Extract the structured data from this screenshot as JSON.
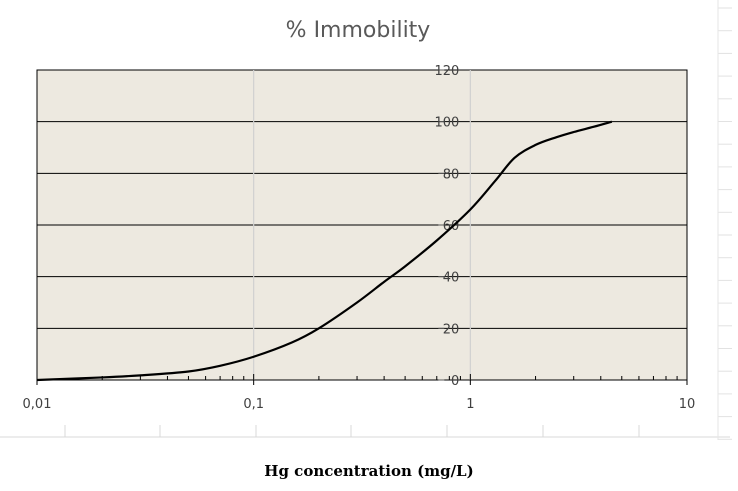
{
  "chart_data": {
    "type": "line",
    "title": "% Immobility",
    "xlabel": "Hg concentration (mg/L)",
    "ylabel": "",
    "xscale": "log",
    "xlim": [
      0.01,
      10
    ],
    "ylim": [
      0,
      120
    ],
    "x_ticks": [
      "0,01",
      "0,1",
      "1",
      "10"
    ],
    "y_ticks": [
      "0",
      "20",
      "40",
      "60",
      "80",
      "100",
      "120"
    ],
    "grid": true,
    "legend": "none",
    "series": [
      {
        "x": [
          0.01,
          0.02,
          0.03,
          0.05,
          0.07,
          0.1,
          0.15,
          0.2,
          0.3,
          0.4,
          0.5,
          0.7,
          1.0,
          1.3,
          1.6,
          2.0,
          2.5,
          3.0,
          3.7,
          4.5
        ],
        "y": [
          0,
          1,
          1.8,
          3.3,
          5.5,
          9,
          14.5,
          20,
          30,
          38,
          44,
          54,
          66,
          77,
          86,
          91,
          94,
          96,
          98,
          100
        ]
      }
    ]
  },
  "colors": {
    "plot_background": "#ede9e0",
    "line": "#000000",
    "gridline": "#000000",
    "vertical_gridline": "#d0d0d0"
  }
}
